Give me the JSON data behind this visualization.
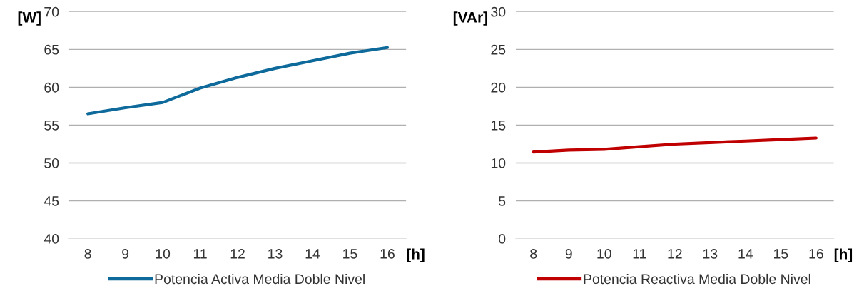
{
  "chart_data": [
    {
      "type": "line",
      "categories": [
        "8",
        "9",
        "10",
        "11",
        "12",
        "13",
        "14",
        "15",
        "16"
      ],
      "xlabel": "[h]",
      "ylabel": "[W]",
      "ylim": [
        40,
        70
      ],
      "yticks": [
        40,
        45,
        50,
        55,
        60,
        65,
        70
      ],
      "grid": "y",
      "legend": "bottom",
      "marker": "none",
      "line_style": "solid",
      "series": [
        {
          "name": "Potencia Activa Media Doble Nivel",
          "color": "#0e6a9b",
          "values": [
            56.5,
            57.3,
            58.0,
            59.9,
            61.3,
            62.5,
            63.5,
            64.5,
            65.25
          ]
        }
      ]
    },
    {
      "type": "line",
      "categories": [
        "8",
        "9",
        "10",
        "11",
        "12",
        "13",
        "14",
        "15",
        "16"
      ],
      "xlabel": "[h]",
      "ylabel": "[VAr]",
      "ylim": [
        0,
        30
      ],
      "yticks": [
        0,
        5,
        10,
        15,
        20,
        25,
        30
      ],
      "grid": "y",
      "legend": "bottom",
      "marker": "none",
      "line_style": "solid",
      "series": [
        {
          "name": "Potencia Reactiva Media Doble Nivel",
          "color": "#c00000",
          "values": [
            11.45,
            11.7,
            11.8,
            12.15,
            12.5,
            12.7,
            12.9,
            13.1,
            13.3
          ]
        }
      ]
    }
  ]
}
